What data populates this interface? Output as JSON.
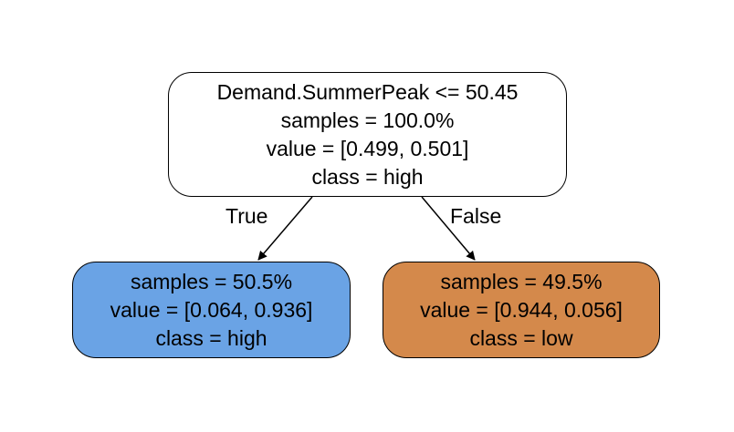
{
  "colors": {
    "root_fill": "#ffffff",
    "high_fill": "#6aa3e5",
    "low_fill": "#d4894b",
    "border": "#000000",
    "edge": "#000000"
  },
  "tree": {
    "root": {
      "lines": [
        "Demand.SummerPeak <= 50.45",
        "samples = 100.0%",
        "value = [0.499, 0.501]",
        "class = high"
      ]
    },
    "left": {
      "lines": [
        "samples = 50.5%",
        "value = [0.064, 0.936]",
        "class = high"
      ]
    },
    "right": {
      "lines": [
        "samples = 49.5%",
        "value = [0.944, 0.056]",
        "class = low"
      ]
    },
    "edges": {
      "true_label": "True",
      "false_label": "False"
    }
  }
}
